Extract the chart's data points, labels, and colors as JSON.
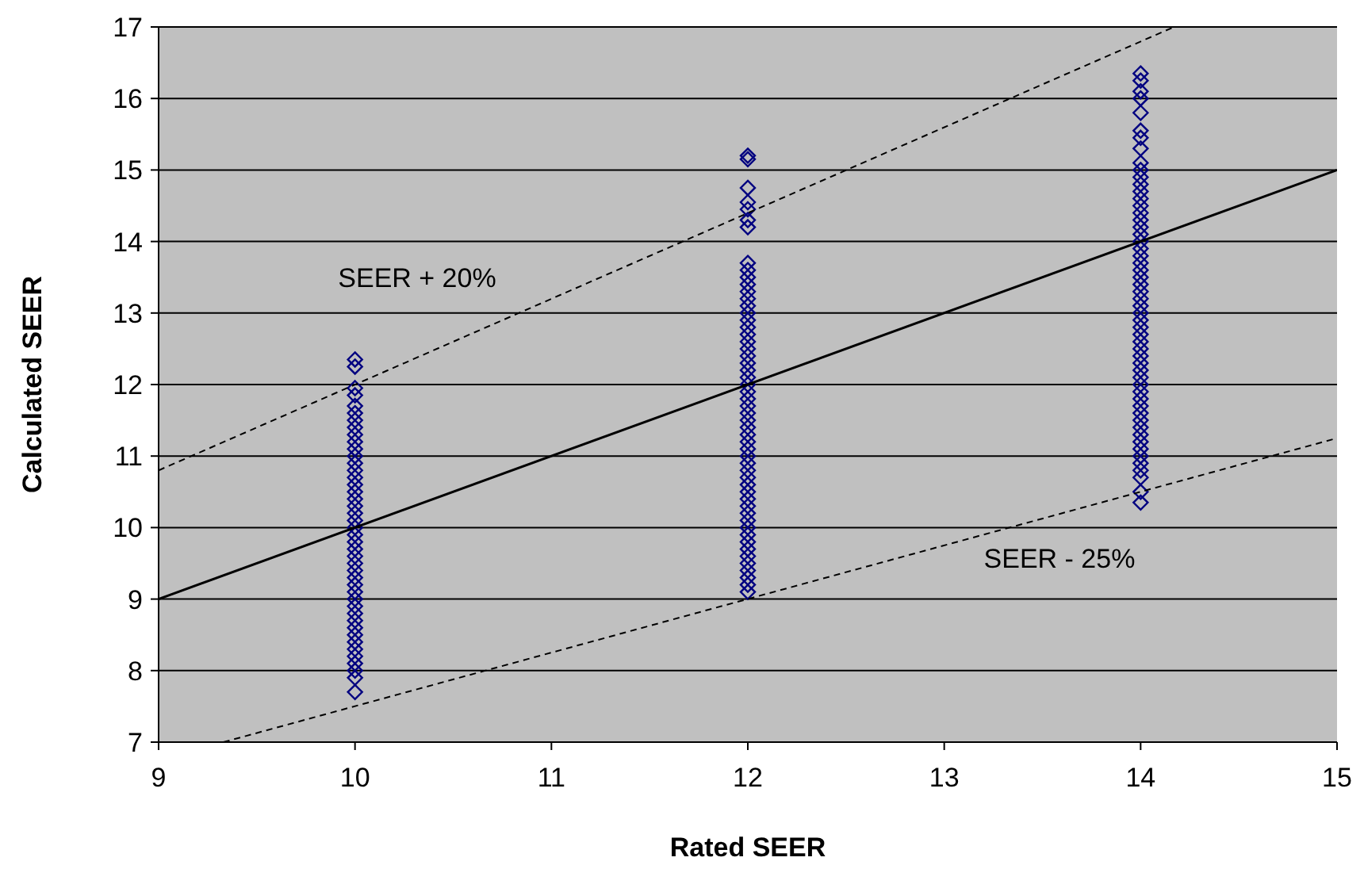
{
  "chart_data": {
    "type": "scatter",
    "xlabel": "Rated SEER",
    "ylabel": "Calculated SEER",
    "xlim": [
      9,
      15
    ],
    "xticks": [
      9,
      10,
      11,
      12,
      13,
      14,
      15
    ],
    "ylim": [
      7,
      17
    ],
    "yticks": [
      7,
      8,
      9,
      10,
      11,
      12,
      13,
      14,
      15,
      16,
      17
    ],
    "grid": "y",
    "marker": "diamond",
    "series": [
      {
        "color": "#000080",
        "x": [
          10,
          10,
          10,
          10,
          10,
          10,
          10,
          10,
          10,
          10,
          10,
          10,
          10,
          10,
          10,
          10,
          10,
          10,
          10,
          10,
          10,
          10,
          10,
          10,
          10,
          10,
          10,
          10,
          10,
          10,
          10,
          10,
          10,
          10,
          10,
          10,
          10,
          10,
          10,
          10
        ],
        "values": [
          12.35,
          12.25,
          11.95,
          11.85,
          11.7,
          11.6,
          11.5,
          11.4,
          11.3,
          11.2,
          11.1,
          11.0,
          10.9,
          10.8,
          10.7,
          10.6,
          10.5,
          10.4,
          10.3,
          10.2,
          10.1,
          10.0,
          9.9,
          9.8,
          9.7,
          9.6,
          9.5,
          9.4,
          9.3,
          9.2,
          9.1,
          9.0,
          8.9,
          8.8,
          8.7,
          8.6,
          8.5,
          8.4,
          8.3,
          8.2
        ]
      },
      {
        "color": "#000080",
        "x": [
          10,
          10,
          10,
          10
        ],
        "values": [
          8.1,
          8.0,
          7.9,
          7.7
        ]
      },
      {
        "color": "#000080",
        "x": [
          12,
          12,
          12,
          12,
          12,
          12,
          12,
          12,
          12,
          12,
          12,
          12,
          12,
          12,
          12,
          12,
          12,
          12,
          12,
          12,
          12,
          12,
          12,
          12,
          12,
          12,
          12,
          12,
          12,
          12,
          12,
          12,
          12,
          12,
          12,
          12,
          12,
          12,
          12,
          12,
          12,
          12,
          12,
          12,
          12,
          12,
          12,
          12,
          12,
          12,
          12,
          12,
          12,
          12
        ],
        "values": [
          15.2,
          15.15,
          14.75,
          14.55,
          14.45,
          14.3,
          14.2,
          13.7,
          13.6,
          13.5,
          13.4,
          13.3,
          13.2,
          13.1,
          13.0,
          12.9,
          12.8,
          12.7,
          12.6,
          12.5,
          12.4,
          12.3,
          12.2,
          12.1,
          12.0,
          11.9,
          11.8,
          11.7,
          11.6,
          11.5,
          11.4,
          11.3,
          11.2,
          11.1,
          11.0,
          10.9,
          10.8,
          10.7,
          10.6,
          10.5,
          10.4,
          10.3,
          10.2,
          10.1,
          10.0,
          9.9,
          9.8,
          9.7,
          9.6,
          9.5,
          9.4,
          9.3,
          9.2,
          9.1
        ]
      },
      {
        "color": "#000080",
        "x": [
          14,
          14,
          14,
          14,
          14,
          14,
          14,
          14,
          14,
          14,
          14,
          14,
          14,
          14,
          14,
          14,
          14,
          14,
          14,
          14,
          14,
          14,
          14,
          14,
          14,
          14,
          14,
          14,
          14,
          14,
          14,
          14,
          14,
          14,
          14,
          14,
          14,
          14,
          14,
          14,
          14,
          14,
          14,
          14,
          14,
          14,
          14,
          14,
          14,
          14,
          14,
          14,
          14,
          14,
          14
        ],
        "values": [
          16.35,
          16.25,
          16.1,
          16.0,
          15.8,
          15.55,
          15.45,
          15.3,
          15.1,
          15.0,
          14.9,
          14.8,
          14.7,
          14.6,
          14.5,
          14.4,
          14.3,
          14.2,
          14.1,
          14.0,
          13.9,
          13.8,
          13.7,
          13.6,
          13.5,
          13.4,
          13.3,
          13.2,
          13.1,
          13.0,
          12.9,
          12.8,
          12.7,
          12.6,
          12.5,
          12.4,
          12.3,
          12.2,
          12.1,
          12.0,
          11.9,
          11.8,
          11.7,
          11.6,
          11.5,
          11.4,
          11.3,
          11.2,
          11.1,
          11.0,
          10.9,
          10.8,
          10.7,
          10.5,
          10.35
        ]
      },
      {
        "type": "line",
        "color": "#000000",
        "marker": "none",
        "line_style": "solid",
        "x": [
          9,
          15
        ],
        "values": [
          9,
          15
        ]
      },
      {
        "type": "line",
        "color": "#000000",
        "marker": "none",
        "line_style": "dashed",
        "x": [
          9,
          14.17
        ],
        "values": [
          10.8,
          17
        ]
      },
      {
        "type": "line",
        "color": "#000000",
        "marker": "none",
        "line_style": "dashed",
        "x": [
          9.33,
          15
        ],
        "values": [
          7,
          11.25
        ]
      }
    ],
    "annotations": [
      "SEER + 20%",
      "SEER - 25%"
    ]
  }
}
